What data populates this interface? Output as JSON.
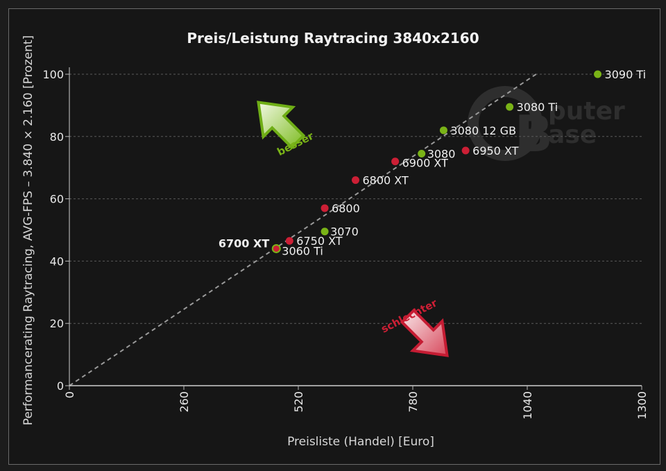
{
  "chart_data": {
    "type": "scatter",
    "title": "Preis/Leistung Raytracing 3840x2160",
    "xlabel": "Preisliste (Handel) [Euro]",
    "ylabel": "Performancerating Raytracing, AVG-FPS – 3.840 × 2.160 [Prozent]",
    "xlim": [
      0,
      1300
    ],
    "ylim": [
      0,
      100
    ],
    "x_ticks": [
      "0",
      "260",
      "520",
      "780",
      "1040",
      "1300"
    ],
    "y_ticks": [
      "0",
      "20",
      "40",
      "60",
      "80",
      "100"
    ],
    "grid": "horizontal dotted",
    "trend_line": {
      "from": [
        0,
        0
      ],
      "to": [
        1060,
        100
      ],
      "style": "dashed"
    },
    "series": [
      {
        "color": "#7ab317",
        "points": [
          {
            "label": "3090 Ti",
            "x": 1200,
            "y": 100
          },
          {
            "label": "3080 Ti",
            "x": 1000,
            "y": 89.5
          },
          {
            "label": "3080 12 GB",
            "x": 850,
            "y": 82
          },
          {
            "label": "3080",
            "x": 800,
            "y": 74.5
          },
          {
            "label": "3070",
            "x": 580,
            "y": 49.5
          },
          {
            "label": "3060 Ti",
            "x": 470,
            "y": 44
          }
        ]
      },
      {
        "color": "#cc1f35",
        "points": [
          {
            "label": "6950 XT",
            "x": 900,
            "y": 75.5
          },
          {
            "label": "6900 XT",
            "x": 740,
            "y": 72
          },
          {
            "label": "6800 XT",
            "x": 650,
            "y": 66
          },
          {
            "label": "6800",
            "x": 580,
            "y": 57
          },
          {
            "label": "6750 XT",
            "x": 500,
            "y": 46.5
          },
          {
            "label": "6700 XT",
            "x": 470,
            "y": 44,
            "highlight": true
          }
        ]
      }
    ],
    "annotations": [
      {
        "text": "besser",
        "color": "#7ab317"
      },
      {
        "text": "schlechter",
        "color": "#cc1f35"
      }
    ],
    "watermark": "ComputerBase"
  }
}
